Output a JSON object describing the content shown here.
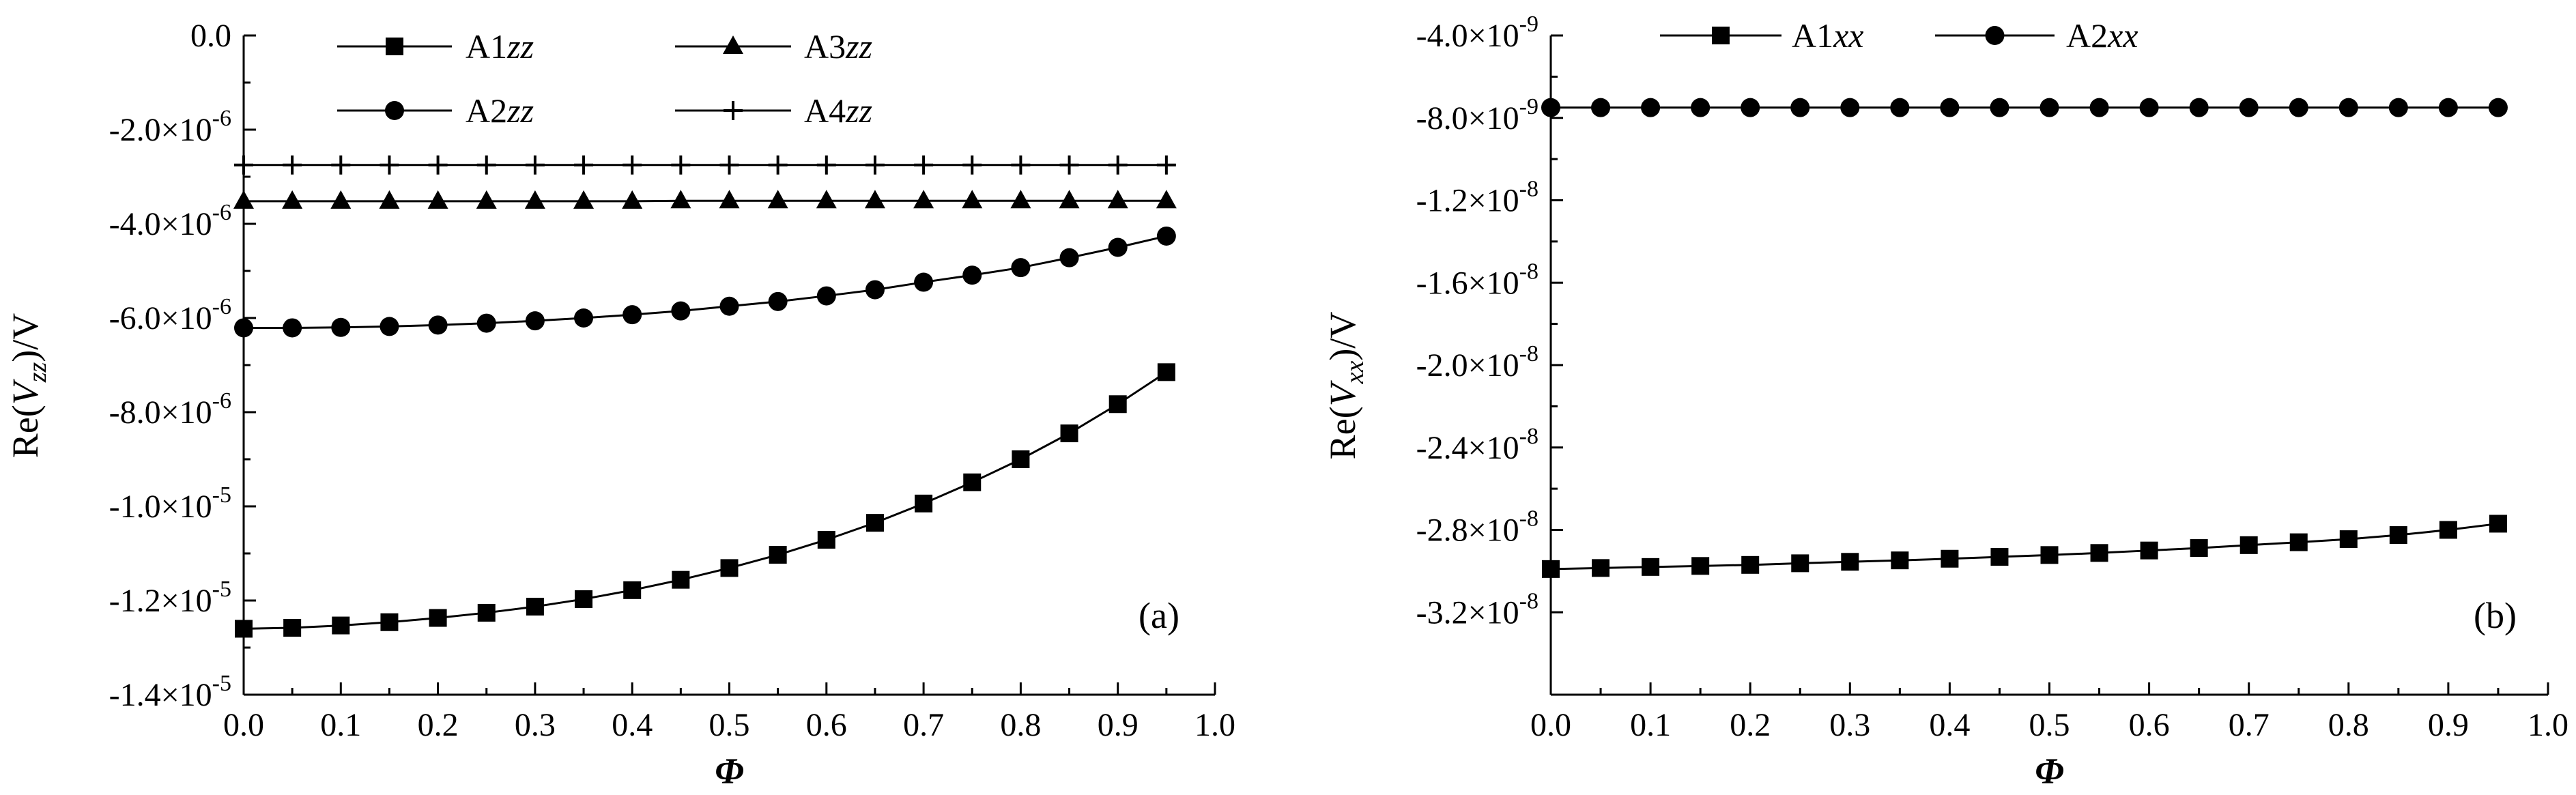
{
  "chart_data": [
    {
      "panel": "(a)",
      "type": "line",
      "xlabel": "Φ",
      "ylabel": "Re(Vzz)/V",
      "ylabel_parts": {
        "prefix": "Re(",
        "var": "V",
        "sub": "zz",
        "suffix": ")/V"
      },
      "xlim": [
        0.0,
        1.0
      ],
      "ylim": [
        -1.4e-05,
        0.0
      ],
      "xticks": [
        {
          "value": 0.0,
          "label": "0.0"
        },
        {
          "value": 0.1,
          "label": "0.1"
        },
        {
          "value": 0.2,
          "label": "0.2"
        },
        {
          "value": 0.3,
          "label": "0.3"
        },
        {
          "value": 0.4,
          "label": "0.4"
        },
        {
          "value": 0.5,
          "label": "0.5"
        },
        {
          "value": 0.6,
          "label": "0.6"
        },
        {
          "value": 0.7,
          "label": "0.7"
        },
        {
          "value": 0.8,
          "label": "0.8"
        },
        {
          "value": 0.9,
          "label": "0.9"
        },
        {
          "value": 1.0,
          "label": "1.0"
        }
      ],
      "yticks": [
        {
          "value": 0.0,
          "mant": "0.0",
          "exp": ""
        },
        {
          "value": -2e-06,
          "mant": "-2.0×10",
          "exp": "-6"
        },
        {
          "value": -4e-06,
          "mant": "-4.0×10",
          "exp": "-6"
        },
        {
          "value": -6e-06,
          "mant": "-6.0×10",
          "exp": "-6"
        },
        {
          "value": -8e-06,
          "mant": "-8.0×10",
          "exp": "-6"
        },
        {
          "value": -1e-05,
          "mant": "-1.0×10",
          "exp": "-5"
        },
        {
          "value": -1.2e-05,
          "mant": "-1.2×10",
          "exp": "-5"
        },
        {
          "value": -1.4e-05,
          "mant": "-1.4×10",
          "exp": "-5"
        }
      ],
      "x": [
        0.0,
        0.05,
        0.1,
        0.15,
        0.2,
        0.25,
        0.3,
        0.35,
        0.4,
        0.45,
        0.5,
        0.55,
        0.6,
        0.65,
        0.7,
        0.75,
        0.8,
        0.85,
        0.9,
        0.95
      ],
      "series": [
        {
          "name": "A1zz",
          "name_prefix": "A1",
          "name_italic": "zz",
          "marker": "square",
          "values": [
            -1.26e-05,
            -1.258e-05,
            -1.253e-05,
            -1.246e-05,
            -1.237e-05,
            -1.226e-05,
            -1.213e-05,
            -1.197e-05,
            -1.178e-05,
            -1.156e-05,
            -1.131e-05,
            -1.103e-05,
            -1.071e-05,
            -1.035e-05,
            -9.94e-06,
            -9.49e-06,
            -9e-06,
            -8.45e-06,
            -7.83e-06,
            -7.15e-06
          ]
        },
        {
          "name": "A2zz",
          "name_prefix": "A2",
          "name_italic": "zz",
          "marker": "circle",
          "values": [
            -6.21e-06,
            -6.21e-06,
            -6.2e-06,
            -6.18e-06,
            -6.15e-06,
            -6.11e-06,
            -6.06e-06,
            -6e-06,
            -5.93e-06,
            -5.85e-06,
            -5.75e-06,
            -5.65e-06,
            -5.53e-06,
            -5.4e-06,
            -5.24e-06,
            -5.09e-06,
            -4.93e-06,
            -4.72e-06,
            -4.5e-06,
            -4.26e-06
          ]
        },
        {
          "name": "A3zz",
          "name_prefix": "A3",
          "name_italic": "zz",
          "marker": "triangle",
          "values": [
            -3.52e-06,
            -3.52e-06,
            -3.52e-06,
            -3.52e-06,
            -3.52e-06,
            -3.52e-06,
            -3.52e-06,
            -3.52e-06,
            -3.52e-06,
            -3.51e-06,
            -3.51e-06,
            -3.51e-06,
            -3.51e-06,
            -3.51e-06,
            -3.51e-06,
            -3.51e-06,
            -3.51e-06,
            -3.51e-06,
            -3.51e-06,
            -3.51e-06
          ]
        },
        {
          "name": "A4zz",
          "name_prefix": "A4",
          "name_italic": "zz",
          "marker": "plus",
          "values": [
            -2.75e-06,
            -2.75e-06,
            -2.75e-06,
            -2.75e-06,
            -2.75e-06,
            -2.75e-06,
            -2.75e-06,
            -2.75e-06,
            -2.75e-06,
            -2.75e-06,
            -2.75e-06,
            -2.75e-06,
            -2.75e-06,
            -2.75e-06,
            -2.75e-06,
            -2.75e-06,
            -2.75e-06,
            -2.75e-06,
            -2.75e-06,
            -2.75e-06
          ]
        }
      ],
      "legend": {
        "placement": "top",
        "columns": 2,
        "order": [
          "A1zz",
          "A3zz",
          "A2zz",
          "A4zz"
        ]
      },
      "grid": false
    },
    {
      "panel": "(b)",
      "type": "line",
      "xlabel": "Φ",
      "ylabel": "Re(Vxx)/V",
      "ylabel_parts": {
        "prefix": "Re(",
        "var": "V",
        "sub": "xx",
        "suffix": ")/V"
      },
      "xlim": [
        0.0,
        1.0
      ],
      "ylim": [
        -3.6e-08,
        -4e-09
      ],
      "xticks": [
        {
          "value": 0.0,
          "label": "0.0"
        },
        {
          "value": 0.1,
          "label": "0.1"
        },
        {
          "value": 0.2,
          "label": "0.2"
        },
        {
          "value": 0.3,
          "label": "0.3"
        },
        {
          "value": 0.4,
          "label": "0.4"
        },
        {
          "value": 0.5,
          "label": "0.5"
        },
        {
          "value": 0.6,
          "label": "0.6"
        },
        {
          "value": 0.7,
          "label": "0.7"
        },
        {
          "value": 0.8,
          "label": "0.8"
        },
        {
          "value": 0.9,
          "label": "0.9"
        },
        {
          "value": 1.0,
          "label": "1.0"
        }
      ],
      "yticks": [
        {
          "value": -4e-09,
          "mant": "-4.0×10",
          "exp": "-9"
        },
        {
          "value": -8e-09,
          "mant": "-8.0×10",
          "exp": "-9"
        },
        {
          "value": -1.2e-08,
          "mant": "-1.2×10",
          "exp": "-8"
        },
        {
          "value": -1.6e-08,
          "mant": "-1.6×10",
          "exp": "-8"
        },
        {
          "value": -2e-08,
          "mant": "-2.0×10",
          "exp": "-8"
        },
        {
          "value": -2.4e-08,
          "mant": "-2.4×10",
          "exp": "-8"
        },
        {
          "value": -2.8e-08,
          "mant": "-2.8×10",
          "exp": "-8"
        },
        {
          "value": -3.2e-08,
          "mant": "-3.2×10",
          "exp": "-8"
        }
      ],
      "x": [
        0.0,
        0.05,
        0.1,
        0.15,
        0.2,
        0.25,
        0.3,
        0.35,
        0.4,
        0.45,
        0.5,
        0.55,
        0.6,
        0.65,
        0.7,
        0.75,
        0.8,
        0.85,
        0.9,
        0.95
      ],
      "series": [
        {
          "name": "A1xx",
          "name_prefix": "A1",
          "name_italic": "xx",
          "marker": "square",
          "values": [
            -2.99e-08,
            -2.985e-08,
            -2.98e-08,
            -2.975e-08,
            -2.97e-08,
            -2.962e-08,
            -2.955e-08,
            -2.948e-08,
            -2.94e-08,
            -2.931e-08,
            -2.922e-08,
            -2.912e-08,
            -2.9e-08,
            -2.888e-08,
            -2.874e-08,
            -2.86e-08,
            -2.845e-08,
            -2.825e-08,
            -2.8e-08,
            -2.77e-08
          ]
        },
        {
          "name": "A2xx",
          "name_prefix": "A2",
          "name_italic": "xx",
          "marker": "circle",
          "values": [
            -7.5e-09,
            -7.5e-09,
            -7.5e-09,
            -7.5e-09,
            -7.5e-09,
            -7.5e-09,
            -7.5e-09,
            -7.5e-09,
            -7.5e-09,
            -7.5e-09,
            -7.5e-09,
            -7.5e-09,
            -7.5e-09,
            -7.5e-09,
            -7.5e-09,
            -7.5e-09,
            -7.5e-09,
            -7.5e-09,
            -7.5e-09,
            -7.5e-09
          ]
        }
      ],
      "legend": {
        "placement": "top-left",
        "columns": 2,
        "order": [
          "A1xx",
          "A2xx"
        ]
      },
      "grid": false
    }
  ]
}
